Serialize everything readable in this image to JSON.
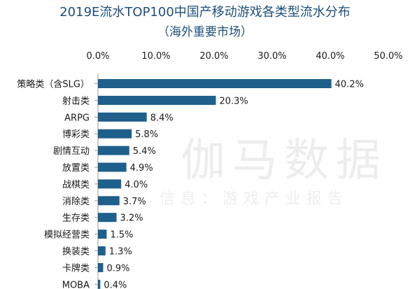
{
  "chart_data": {
    "type": "bar",
    "orientation": "horizontal",
    "title": "2019E流水TOP100中国产移动游戏各类型流水分布",
    "subtitle": "（海外重要市场）",
    "categories": [
      "策略类（含SLG）",
      "射击类",
      "ARPG",
      "博彩类",
      "剧情互动",
      "放置类",
      "战棋类",
      "消除类",
      "生存类",
      "模拟经营类",
      "换装类",
      "卡牌类",
      "MOBA"
    ],
    "values": [
      40.2,
      20.3,
      8.4,
      5.8,
      5.4,
      4.9,
      4.0,
      3.7,
      3.2,
      1.5,
      1.3,
      0.9,
      0.4
    ],
    "value_labels": [
      "40.2%",
      "20.3%",
      "8.4%",
      "5.8%",
      "5.4%",
      "4.9%",
      "4.0%",
      "3.7%",
      "3.2%",
      "1.5%",
      "1.3%",
      "0.9%",
      "0.4%"
    ],
    "xlim": [
      0,
      50
    ],
    "x_ticks": [
      "0.0%",
      "10.0%",
      "20.0%",
      "30.0%",
      "40.0%",
      "50.0%"
    ],
    "axis_position": "top",
    "grid": false,
    "legend": "none",
    "bar_color": "#1f5f8b",
    "title_color": "#1f4e79"
  },
  "watermark": {
    "main": "伽马数据",
    "sub": "信息：游戏产业报告"
  }
}
